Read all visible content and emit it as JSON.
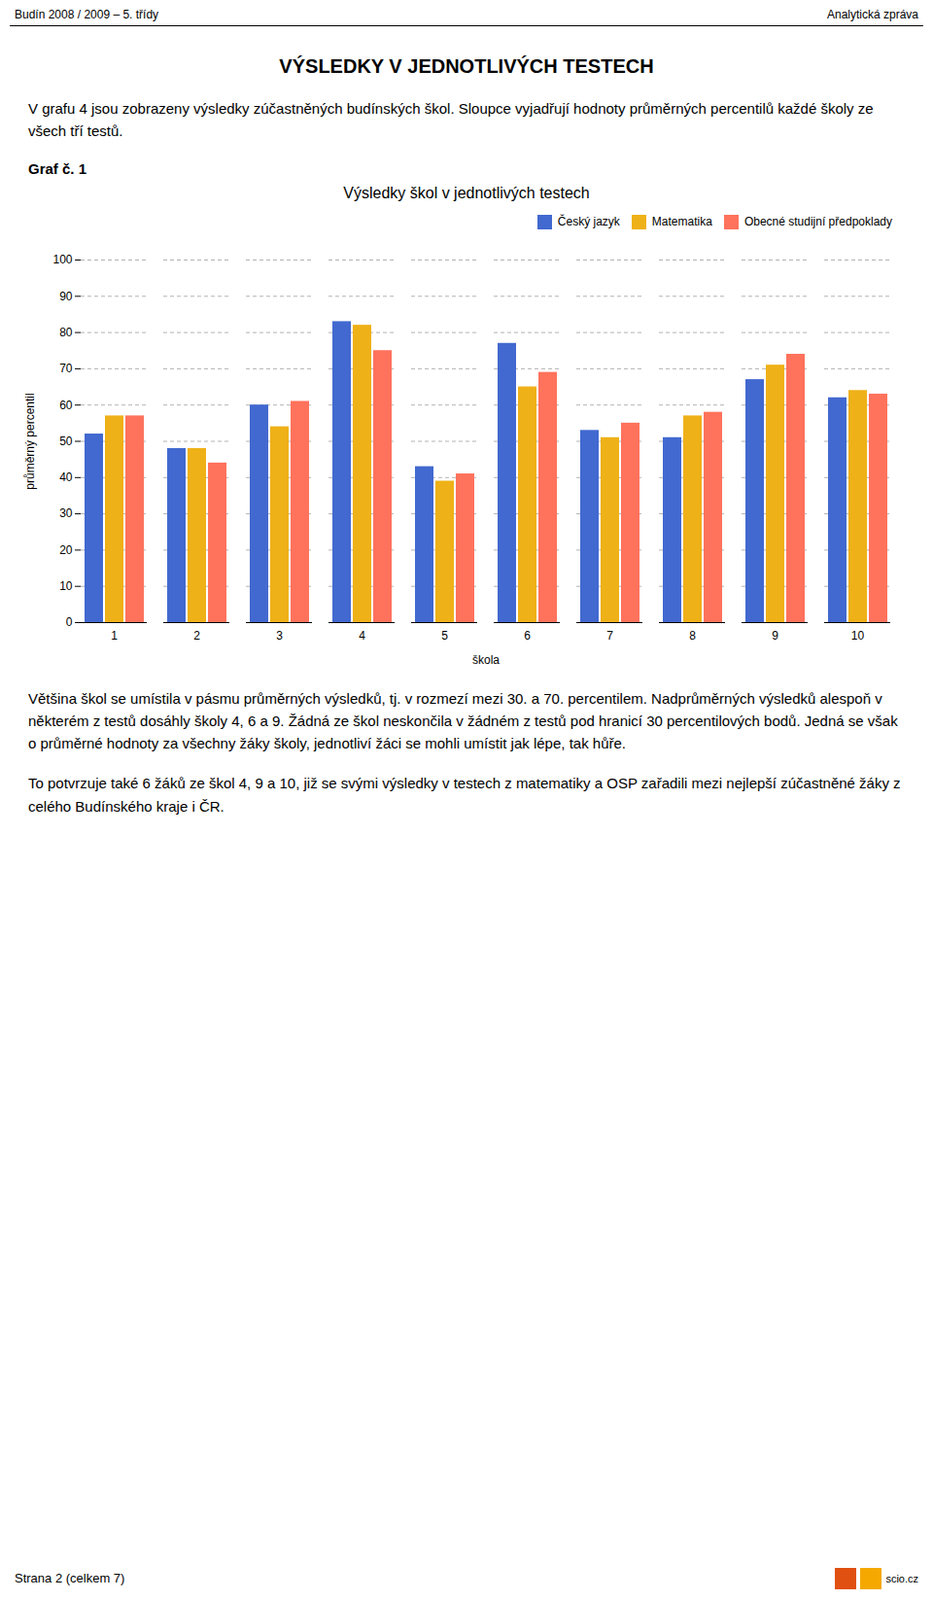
{
  "header_left": "Budín 2008 / 2009 – 5. třídy",
  "header_right": "Analytická zpráva",
  "page_title": "VÝSLEDKY V JEDNOTLIVÝCH TESTECH",
  "intro_text": "V grafu 4 jsou zobrazeny výsledky zúčastněných budínských škol. Sloupce vyjadřují hodnoty průměrných percentilů každé školy ze všech tří testů.",
  "graf_label": "Graf č. 1",
  "body_text1": "Většina škol se umístila v pásmu průměrných výsledků, tj. v rozmezí mezi 30. a 70. percentilem. Nadprůměrných výsledků alespoň v některém z testů dosáhly školy 4, 6 a 9. Žádná ze škol neskončila v žádném z testů pod hranicí 30 percentilových bodů. Jedná se však o průměrné hodnoty za všechny žáky školy, jednotliví žáci se mohli umístit jak lépe, tak hůře.",
  "body_text2": "To potvrzuje také 6 žáků ze škol 4, 9 a 10, již se svými výsledky v testech z matematiky a OSP zařadili mezi nejlepší zúčastněné žáky z celého Budínského kraje i ČR.",
  "footer_left": "Strana 2 (celkem 7)",
  "logo_text": "scio.cz",
  "logo_colors": [
    "#e05010",
    "#f5a800"
  ],
  "chart_data": {
    "type": "bar",
    "title": "Výsledky škol v jednotlivých testech",
    "xlabel": "škola",
    "ylabel": "průměrný percentil",
    "categories": [
      "1",
      "2",
      "3",
      "4",
      "5",
      "6",
      "7",
      "8",
      "9",
      "10"
    ],
    "series": [
      {
        "name": "Český jazyk",
        "values": [
          52,
          48,
          60,
          83,
          43,
          77,
          53,
          51,
          67,
          62
        ]
      },
      {
        "name": "Matematika",
        "values": [
          57,
          48,
          54,
          82,
          39,
          65,
          51,
          57,
          71,
          64
        ]
      },
      {
        "name": "Obecné studijní předpoklady",
        "values": [
          57,
          44,
          61,
          75,
          41,
          69,
          55,
          58,
          74,
          63
        ]
      }
    ],
    "ylim": [
      0,
      100
    ],
    "yticks": [
      0,
      10,
      20,
      30,
      40,
      50,
      60,
      70,
      80,
      90,
      100
    ],
    "grid": true,
    "legend": "upper right"
  }
}
